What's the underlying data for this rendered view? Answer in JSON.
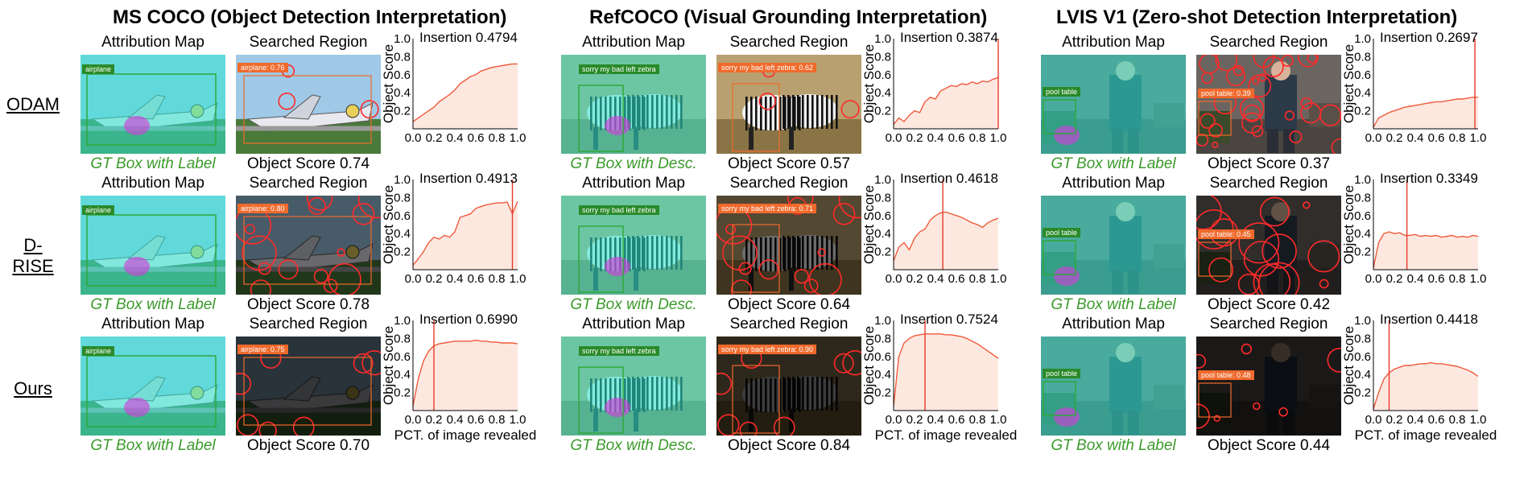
{
  "sections": [
    {
      "title": "MS COCO (Object Detection Interpretation)",
      "attribution_label": "Attribution Map",
      "region_label": "Searched Region",
      "gt_label": "GT Box with Label",
      "tag_text": "airplane",
      "scene": "plane"
    },
    {
      "title": "RefCOCO (Visual Grounding Interpretation)",
      "attribution_label": "Attribution Map",
      "region_label": "Searched Region",
      "gt_label": "GT Box with Desc.",
      "tag_text": "sorry my bad left zebra",
      "scene": "zebra"
    },
    {
      "title": "LVIS V1 (Zero-shot Detection Interpretation)",
      "attribution_label": "Attribution Map",
      "region_label": "Searched Region",
      "gt_label": "GT Box with Label",
      "tag_text": "pool table",
      "scene": "person"
    }
  ],
  "rows": [
    {
      "label": "ODAM",
      "cells": [
        {
          "region_tag": "airplane: 0.76",
          "object_score": "Object Score 0.74",
          "insertion": "Insertion 0.4794"
        },
        {
          "region_tag": "sorry my bad left zebra: 0.62",
          "object_score": "Object Score 0.57",
          "insertion": "Insertion 0.3874"
        },
        {
          "region_tag": "pool table: 0.39",
          "object_score": "Object Score 0.37",
          "insertion": "Insertion 0.2697"
        }
      ]
    },
    {
      "label": "D-RISE",
      "cells": [
        {
          "region_tag": "airplane: 0.80",
          "object_score": "Object Score 0.78",
          "insertion": "Insertion 0.4913"
        },
        {
          "region_tag": "sorry my bad left zebra: 0.71",
          "object_score": "Object Score 0.64",
          "insertion": "Insertion 0.4618"
        },
        {
          "region_tag": "pool table: 0.45",
          "object_score": "Object Score 0.42",
          "insertion": "Insertion 0.3349"
        }
      ]
    },
    {
      "label": "Ours",
      "cells": [
        {
          "region_tag": "airplane: 0.75",
          "object_score": "Object Score 0.70",
          "insertion": "Insertion 0.6990"
        },
        {
          "region_tag": "sorry my bad left zebra: 0.90",
          "object_score": "Object Score 0.84",
          "insertion": "Insertion 0.7524"
        },
        {
          "region_tag": "pool table: 0.48",
          "object_score": "Object Score 0.44",
          "insertion": "Insertion 0.4418"
        }
      ]
    }
  ],
  "colors": {
    "curve": "#f05a3c",
    "fill": "#fde8e0",
    "marker": "#e63a2a",
    "gt_text": "#3a9a2a",
    "tag_bg": "#f06a2c",
    "gt_tag_bg": "#2a8a2a"
  },
  "chart_data": [
    {
      "type": "area",
      "row": "ODAM",
      "dataset": "MS COCO",
      "title": "Insertion 0.4794",
      "xlabel": "",
      "ylabel": "Object Score",
      "xlim": [
        0,
        1
      ],
      "ylim": [
        0,
        1
      ],
      "xticks": [
        "0.0",
        "0.2",
        "0.4",
        "0.6",
        "0.8",
        "1.0"
      ],
      "yticks": [
        "0.2",
        "0.4",
        "0.6",
        "0.8",
        "1.0"
      ],
      "marker_x": null,
      "x": [
        0.0,
        0.05,
        0.1,
        0.15,
        0.2,
        0.25,
        0.3,
        0.35,
        0.4,
        0.45,
        0.5,
        0.55,
        0.6,
        0.65,
        0.7,
        0.75,
        0.8,
        0.85,
        0.9,
        0.95,
        1.0
      ],
      "y": [
        0.08,
        0.12,
        0.16,
        0.2,
        0.24,
        0.3,
        0.34,
        0.38,
        0.43,
        0.5,
        0.54,
        0.58,
        0.6,
        0.64,
        0.66,
        0.68,
        0.69,
        0.7,
        0.71,
        0.72,
        0.72
      ]
    },
    {
      "type": "area",
      "row": "ODAM",
      "dataset": "RefCOCO",
      "title": "Insertion 0.3874",
      "xlabel": "",
      "ylabel": "Object Score",
      "xlim": [
        0,
        1
      ],
      "ylim": [
        0,
        1
      ],
      "xticks": [
        "0.0",
        "0.2",
        "0.4",
        "0.6",
        "0.8",
        "1.0"
      ],
      "yticks": [
        "0.2",
        "0.4",
        "0.6",
        "0.8",
        "1.0"
      ],
      "marker_x": 1.0,
      "x": [
        0.0,
        0.05,
        0.1,
        0.15,
        0.2,
        0.25,
        0.3,
        0.35,
        0.4,
        0.45,
        0.5,
        0.55,
        0.6,
        0.65,
        0.7,
        0.75,
        0.8,
        0.85,
        0.9,
        0.95,
        1.0
      ],
      "y": [
        0.05,
        0.12,
        0.08,
        0.15,
        0.2,
        0.18,
        0.3,
        0.35,
        0.33,
        0.42,
        0.45,
        0.48,
        0.47,
        0.5,
        0.49,
        0.52,
        0.5,
        0.53,
        0.52,
        0.55,
        0.57
      ]
    },
    {
      "type": "area",
      "row": "ODAM",
      "dataset": "LVIS V1",
      "title": "Insertion 0.2697",
      "xlabel": "",
      "ylabel": "Object Score",
      "xlim": [
        0,
        1
      ],
      "ylim": [
        0,
        1
      ],
      "xticks": [
        "0.0",
        "0.2",
        "0.4",
        "0.6",
        "0.8",
        "1.0"
      ],
      "yticks": [
        "0.2",
        "0.4",
        "0.6",
        "0.8",
        "1.0"
      ],
      "marker_x": 0.97,
      "x": [
        0.0,
        0.05,
        0.1,
        0.15,
        0.2,
        0.25,
        0.3,
        0.35,
        0.4,
        0.45,
        0.5,
        0.55,
        0.6,
        0.65,
        0.7,
        0.75,
        0.8,
        0.85,
        0.9,
        0.95,
        1.0
      ],
      "y": [
        0.02,
        0.12,
        0.15,
        0.18,
        0.2,
        0.22,
        0.24,
        0.25,
        0.26,
        0.27,
        0.28,
        0.29,
        0.3,
        0.3,
        0.31,
        0.32,
        0.33,
        0.33,
        0.34,
        0.35,
        0.35
      ]
    },
    {
      "type": "area",
      "row": "D-RISE",
      "dataset": "MS COCO",
      "title": "Insertion 0.4913",
      "xlabel": "",
      "ylabel": "Object Score",
      "xlim": [
        0,
        1
      ],
      "ylim": [
        0,
        1
      ],
      "xticks": [
        "0.0",
        "0.2",
        "0.4",
        "0.6",
        "0.8",
        "1.0"
      ],
      "yticks": [
        "0.2",
        "0.4",
        "0.6",
        "0.8",
        "1.0"
      ],
      "marker_x": 0.95,
      "x": [
        0.0,
        0.05,
        0.1,
        0.15,
        0.2,
        0.25,
        0.3,
        0.35,
        0.4,
        0.45,
        0.5,
        0.55,
        0.6,
        0.65,
        0.7,
        0.75,
        0.8,
        0.85,
        0.9,
        0.95,
        1.0
      ],
      "y": [
        0.05,
        0.12,
        0.2,
        0.3,
        0.36,
        0.34,
        0.38,
        0.36,
        0.42,
        0.58,
        0.6,
        0.62,
        0.68,
        0.7,
        0.72,
        0.73,
        0.74,
        0.74,
        0.75,
        0.62,
        0.76
      ]
    },
    {
      "type": "area",
      "row": "D-RISE",
      "dataset": "RefCOCO",
      "title": "Insertion 0.4618",
      "xlabel": "",
      "ylabel": "Object Score",
      "xlim": [
        0,
        1
      ],
      "ylim": [
        0,
        1
      ],
      "xticks": [
        "0.0",
        "0.2",
        "0.4",
        "0.6",
        "0.8",
        "1.0"
      ],
      "yticks": [
        "0.2",
        "0.4",
        "0.6",
        "0.8",
        "1.0"
      ],
      "marker_x": 0.47,
      "x": [
        0.0,
        0.05,
        0.1,
        0.15,
        0.2,
        0.25,
        0.3,
        0.35,
        0.4,
        0.45,
        0.5,
        0.55,
        0.6,
        0.65,
        0.7,
        0.75,
        0.8,
        0.85,
        0.9,
        0.95,
        1.0
      ],
      "y": [
        0.1,
        0.25,
        0.3,
        0.22,
        0.35,
        0.42,
        0.45,
        0.55,
        0.6,
        0.63,
        0.64,
        0.62,
        0.6,
        0.58,
        0.55,
        0.52,
        0.5,
        0.47,
        0.52,
        0.55,
        0.57
      ]
    },
    {
      "type": "area",
      "row": "D-RISE",
      "dataset": "LVIS V1",
      "title": "Insertion 0.3349",
      "xlabel": "",
      "ylabel": "Object Score",
      "xlim": [
        0,
        1
      ],
      "ylim": [
        0,
        1
      ],
      "xticks": [
        "0.0",
        "0.2",
        "0.4",
        "0.6",
        "0.8",
        "1.0"
      ],
      "yticks": [
        "0.2",
        "0.4",
        "0.6",
        "0.8",
        "1.0"
      ],
      "marker_x": 0.32,
      "x": [
        0.0,
        0.05,
        0.1,
        0.15,
        0.2,
        0.25,
        0.3,
        0.35,
        0.4,
        0.45,
        0.5,
        0.55,
        0.6,
        0.65,
        0.7,
        0.75,
        0.8,
        0.85,
        0.9,
        0.95,
        1.0
      ],
      "y": [
        0.02,
        0.3,
        0.4,
        0.42,
        0.4,
        0.41,
        0.38,
        0.38,
        0.39,
        0.37,
        0.38,
        0.37,
        0.38,
        0.36,
        0.37,
        0.38,
        0.36,
        0.37,
        0.36,
        0.38,
        0.37
      ]
    },
    {
      "type": "area",
      "row": "Ours",
      "dataset": "MS COCO",
      "title": "Insertion 0.6990",
      "xlabel": "PCT. of image revealed",
      "ylabel": "Object Score",
      "xlim": [
        0,
        1
      ],
      "ylim": [
        0,
        1
      ],
      "xticks": [
        "0.0",
        "0.2",
        "0.4",
        "0.6",
        "0.8",
        "1.0"
      ],
      "yticks": [
        "0.2",
        "0.4",
        "0.6",
        "0.8",
        "1.0"
      ],
      "marker_x": 0.2,
      "x": [
        0.0,
        0.05,
        0.1,
        0.15,
        0.2,
        0.25,
        0.3,
        0.35,
        0.4,
        0.45,
        0.5,
        0.55,
        0.6,
        0.65,
        0.7,
        0.75,
        0.8,
        0.85,
        0.9,
        0.95,
        1.0
      ],
      "y": [
        0.05,
        0.35,
        0.55,
        0.66,
        0.72,
        0.74,
        0.75,
        0.76,
        0.77,
        0.77,
        0.77,
        0.77,
        0.78,
        0.77,
        0.77,
        0.76,
        0.76,
        0.75,
        0.75,
        0.75,
        0.74
      ]
    },
    {
      "type": "area",
      "row": "Ours",
      "dataset": "RefCOCO",
      "title": "Insertion 0.7524",
      "xlabel": "PCT. of image revealed",
      "ylabel": "Object Score",
      "xlim": [
        0,
        1
      ],
      "ylim": [
        0,
        1
      ],
      "xticks": [
        "0.0",
        "0.2",
        "0.4",
        "0.6",
        "0.8",
        "1.0"
      ],
      "yticks": [
        "0.2",
        "0.4",
        "0.6",
        "0.8",
        "1.0"
      ],
      "marker_x": 0.3,
      "x": [
        0.0,
        0.05,
        0.1,
        0.15,
        0.2,
        0.25,
        0.3,
        0.35,
        0.4,
        0.45,
        0.5,
        0.55,
        0.6,
        0.65,
        0.7,
        0.75,
        0.8,
        0.85,
        0.9,
        0.95,
        1.0
      ],
      "y": [
        0.05,
        0.6,
        0.75,
        0.8,
        0.83,
        0.84,
        0.85,
        0.85,
        0.85,
        0.85,
        0.84,
        0.84,
        0.83,
        0.82,
        0.8,
        0.77,
        0.74,
        0.7,
        0.66,
        0.62,
        0.58
      ]
    },
    {
      "type": "area",
      "row": "Ours",
      "dataset": "LVIS V1",
      "title": "Insertion 0.4418",
      "xlabel": "PCT. of image revealed",
      "ylabel": "Object Score",
      "xlim": [
        0,
        1
      ],
      "ylim": [
        0,
        1
      ],
      "xticks": [
        "0.0",
        "0.2",
        "0.4",
        "0.6",
        "0.8",
        "1.0"
      ],
      "yticks": [
        "0.2",
        "0.4",
        "0.6",
        "0.8",
        "1.0"
      ],
      "marker_x": 0.15,
      "x": [
        0.0,
        0.05,
        0.1,
        0.15,
        0.2,
        0.25,
        0.3,
        0.35,
        0.4,
        0.45,
        0.5,
        0.55,
        0.6,
        0.65,
        0.7,
        0.75,
        0.8,
        0.85,
        0.9,
        0.95,
        1.0
      ],
      "y": [
        0.02,
        0.2,
        0.35,
        0.42,
        0.46,
        0.48,
        0.5,
        0.5,
        0.51,
        0.52,
        0.52,
        0.53,
        0.52,
        0.52,
        0.51,
        0.5,
        0.49,
        0.47,
        0.45,
        0.42,
        0.38
      ]
    }
  ]
}
